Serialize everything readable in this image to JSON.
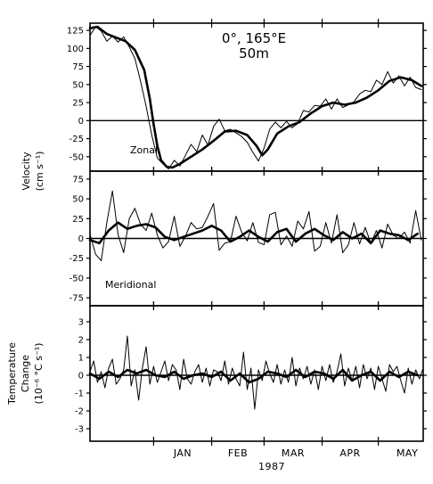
{
  "chart_data": {
    "type": "line",
    "title_line1": "0°, 165°E",
    "title_line2": "50m",
    "xlabel": "1987",
    "x_months": [
      "JAN",
      "FEB",
      "MAR",
      "APR",
      "MAY"
    ],
    "x_month_start_day": [
      0,
      31,
      59,
      90,
      120
    ],
    "xlim_days": [
      -34,
      144
    ],
    "panels": [
      {
        "annotation": "Zonal",
        "ylabel_line1": "Velocity",
        "ylabel_line2": "(cm s⁻¹)",
        "ylim": [
          -70,
          135
        ],
        "yticks": [
          125,
          100,
          75,
          50,
          25,
          0,
          -25,
          -50
        ],
        "zero_line": true,
        "series": [
          {
            "style": "raw",
            "x": [
              -34,
              -31,
              -28,
              -25,
              -22,
              -19,
              -16,
              -13,
              -10,
              -7,
              -4,
              -1,
              2,
              5,
              8,
              11,
              14,
              17,
              20,
              23,
              26,
              29,
              32,
              35,
              38,
              41,
              44,
              47,
              50,
              53,
              56,
              59,
              62,
              65,
              68,
              71,
              74,
              77,
              80,
              83,
              86,
              89,
              92,
              95,
              98,
              101,
              104,
              107,
              110,
              113,
              116,
              119,
              122,
              125,
              128,
              131,
              134,
              137,
              140,
              143
            ],
            "values": [
              118,
              130,
              124,
              110,
              117,
              109,
              116,
              102,
              86,
              55,
              20,
              -20,
              -52,
              -60,
              -67,
              -55,
              -63,
              -48,
              -33,
              -43,
              -20,
              -34,
              -8,
              2,
              -14,
              -12,
              -17,
              -22,
              -30,
              -44,
              -56,
              -38,
              -12,
              -2,
              -10,
              -1,
              -10,
              -4,
              14,
              12,
              21,
              20,
              30,
              16,
              30,
              18,
              22,
              26,
              37,
              42,
              40,
              56,
              50,
              68,
              52,
              62,
              48,
              60,
              46,
              43
            ]
          },
          {
            "style": "smooth",
            "x": [
              -34,
              -30,
              -25,
              -20,
              -15,
              -10,
              -5,
              -2,
              0,
              2,
              4,
              7,
              10,
              14,
              20,
              26,
              32,
              38,
              44,
              50,
              55,
              58,
              61,
              66,
              72,
              78,
              84,
              90,
              96,
              102,
              108,
              114,
              120,
              126,
              132,
              138,
              143
            ],
            "values": [
              128,
              130,
              120,
              115,
              110,
              98,
              70,
              30,
              -5,
              -35,
              -55,
              -64,
              -65,
              -60,
              -50,
              -40,
              -28,
              -15,
              -14,
              -20,
              -35,
              -48,
              -40,
              -18,
              -8,
              -2,
              10,
              20,
              25,
              22,
              25,
              32,
              42,
              55,
              60,
              56,
              48
            ]
          }
        ]
      },
      {
        "annotation": "Meridional",
        "ylim": [
          -85,
          85
        ],
        "yticks": [
          75,
          50,
          25,
          0,
          -25,
          -50,
          -75
        ],
        "zero_line": true,
        "series": [
          {
            "style": "raw",
            "x": [
              -34,
              -31,
              -28,
              -25,
              -22,
              -19,
              -16,
              -13,
              -10,
              -7,
              -4,
              -1,
              2,
              5,
              8,
              11,
              14,
              17,
              20,
              23,
              26,
              29,
              32,
              35,
              38,
              41,
              44,
              47,
              50,
              53,
              56,
              59,
              62,
              65,
              68,
              71,
              74,
              77,
              80,
              83,
              86,
              89,
              92,
              95,
              98,
              101,
              104,
              107,
              110,
              113,
              116,
              119,
              122,
              125,
              128,
              131,
              134,
              137,
              140,
              143
            ],
            "values": [
              5,
              -20,
              -28,
              20,
              60,
              5,
              -18,
              25,
              38,
              18,
              10,
              32,
              4,
              -12,
              -4,
              28,
              -10,
              3,
              20,
              12,
              14,
              28,
              44,
              -15,
              -6,
              -4,
              28,
              8,
              -3,
              20,
              -5,
              -8,
              30,
              33,
              -8,
              3,
              -10,
              22,
              12,
              34,
              -16,
              -10,
              20,
              -6,
              30,
              -18,
              -8,
              20,
              -7,
              14,
              -6,
              10,
              -12,
              18,
              4,
              0,
              8,
              -6,
              35,
              -2
            ]
          },
          {
            "style": "smooth",
            "x": [
              -34,
              -29,
              -24,
              -19,
              -14,
              -9,
              -4,
              1,
              6,
              11,
              16,
              21,
              26,
              31,
              36,
              41,
              46,
              51,
              56,
              61,
              66,
              71,
              76,
              81,
              86,
              91,
              96,
              101,
              106,
              111,
              116,
              121,
              126,
              131,
              136,
              141
            ],
            "values": [
              -2,
              -6,
              10,
              20,
              12,
              16,
              18,
              14,
              2,
              -2,
              2,
              6,
              10,
              16,
              10,
              -4,
              2,
              10,
              2,
              -4,
              8,
              12,
              -4,
              6,
              12,
              4,
              -2,
              8,
              0,
              6,
              -6,
              10,
              6,
              4,
              -2,
              6
            ]
          }
        ]
      },
      {
        "ylabel_line1": "Temperature",
        "ylabel_line2": "Change",
        "ylabel_line3": "(10⁻⁶ °C s⁻¹)",
        "ylim": [
          -3.7,
          3.9
        ],
        "yticks": [
          3,
          2,
          1,
          0,
          -1,
          -2,
          -3
        ],
        "zero_line": true,
        "series": [
          {
            "style": "raw",
            "x": [
              -34,
              -32,
              -30,
              -28,
              -26,
              -24,
              -22,
              -20,
              -18,
              -16,
              -14,
              -12,
              -10,
              -8,
              -6,
              -4,
              -2,
              0,
              2,
              4,
              6,
              8,
              10,
              12,
              14,
              16,
              18,
              20,
              22,
              24,
              26,
              28,
              30,
              32,
              34,
              36,
              38,
              40,
              42,
              44,
              46,
              48,
              50,
              52,
              54,
              56,
              58,
              60,
              62,
              64,
              66,
              68,
              70,
              72,
              74,
              76,
              78,
              80,
              82,
              84,
              86,
              88,
              90,
              92,
              94,
              96,
              98,
              100,
              102,
              104,
              106,
              108,
              110,
              112,
              114,
              116,
              118,
              120,
              122,
              124,
              126,
              128,
              130,
              132,
              134,
              136,
              138,
              140,
              142,
              144
            ],
            "values": [
              0.2,
              0.8,
              -0.4,
              0.2,
              -0.7,
              0.4,
              0.9,
              -0.5,
              -0.2,
              0.3,
              2.2,
              -0.6,
              0.3,
              -1.4,
              0.4,
              1.6,
              -0.5,
              0.5,
              -0.4,
              0.2,
              0.8,
              -0.3,
              0.6,
              0.3,
              -0.8,
              0.9,
              -0.2,
              -0.5,
              0.2,
              0.6,
              -0.4,
              0.4,
              -0.6,
              0.3,
              0.2,
              -0.3,
              0.8,
              -0.5,
              0.4,
              -0.2,
              -0.6,
              1.3,
              -0.8,
              0.4,
              -1.9,
              0.3,
              -0.3,
              0.8,
              0.1,
              -0.4,
              0.6,
              -0.5,
              0.3,
              -0.4,
              1.0,
              -0.6,
              0.4,
              -0.2,
              0.5,
              -0.5,
              0.3,
              -0.8,
              0.5,
              -0.3,
              0.6,
              -0.4,
              0.2,
              1.2,
              -0.6,
              0.4,
              -0.3,
              0.5,
              -0.7,
              0.6,
              -0.2,
              0.4,
              -0.8,
              0.5,
              -0.2,
              -0.9,
              0.6,
              0.2,
              0.5,
              -0.3,
              -1.0,
              0.4,
              -0.5,
              0.3,
              -0.2,
              0.4
            ]
          },
          {
            "style": "smooth",
            "x": [
              -34,
              -29,
              -24,
              -19,
              -14,
              -9,
              -4,
              1,
              6,
              11,
              16,
              21,
              26,
              31,
              36,
              41,
              46,
              51,
              56,
              61,
              66,
              71,
              76,
              81,
              86,
              91,
              96,
              101,
              106,
              111,
              116,
              121,
              126,
              131,
              136,
              141
            ],
            "values": [
              0.1,
              -0.2,
              0.2,
              -0.1,
              0.3,
              0.1,
              0.3,
              0.0,
              -0.1,
              0.2,
              -0.2,
              0.0,
              0.1,
              -0.1,
              0.2,
              -0.3,
              0.1,
              -0.4,
              -0.2,
              0.2,
              0.1,
              -0.1,
              0.3,
              -0.1,
              0.2,
              0.1,
              -0.2,
              0.3,
              -0.3,
              0.0,
              0.2,
              -0.3,
              0.2,
              -0.1,
              0.2,
              0.0
            ]
          }
        ]
      }
    ]
  }
}
